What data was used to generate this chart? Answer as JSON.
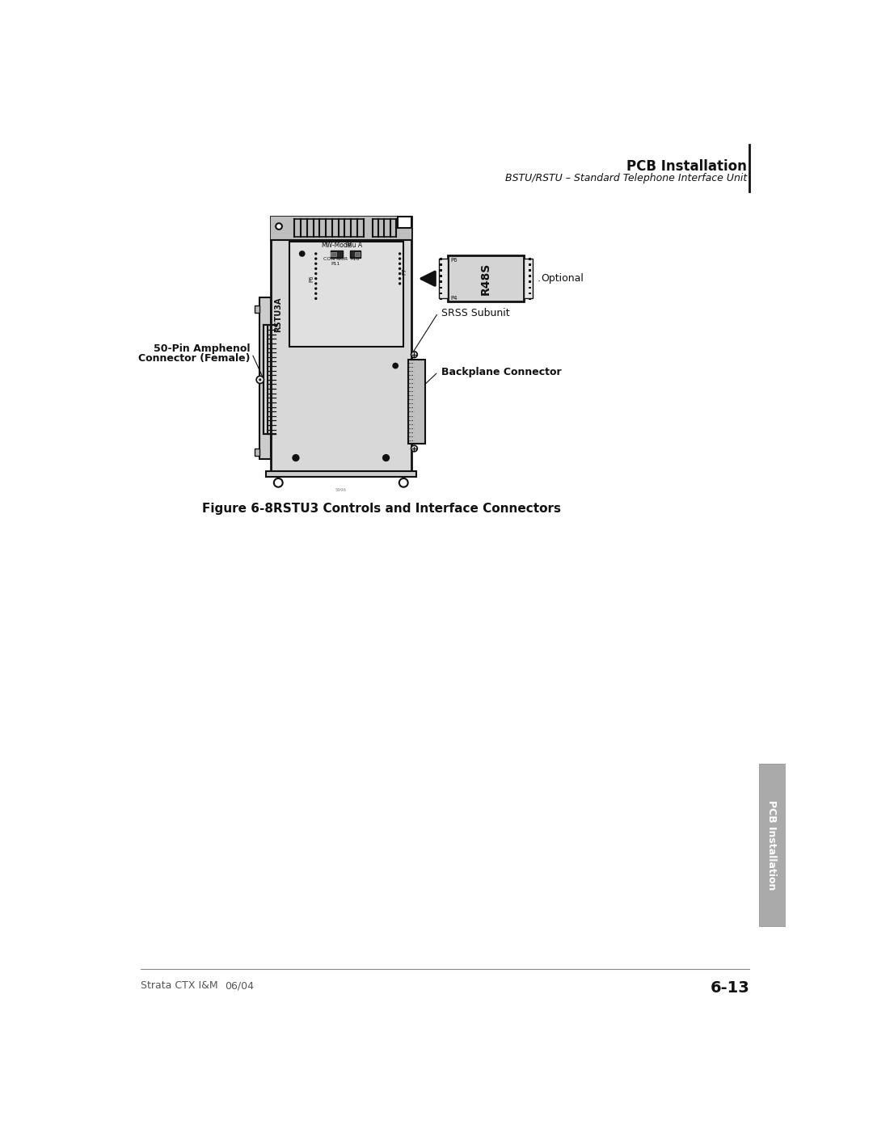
{
  "page_title": "PCB Installation",
  "page_subtitle": "BSTU/RSTU – Standard Telephone Interface Unit",
  "figure_label": "Figure 6-8",
  "figure_caption": "RSTU3 Controls and Interface Connectors",
  "footer_left": "Strata CTX I&M",
  "footer_date": "06/04",
  "footer_page": "6-13",
  "tab_text": "PCB Installation",
  "bg_color": "#ffffff",
  "pcb_color": "#d8d8d8",
  "pcb_border": "#222222",
  "dark_color": "#111111",
  "gray_color": "#888888",
  "light_gray": "#c8c8c8",
  "tab_color": "#aaaaaa",
  "label_font": 9,
  "small_font": 6
}
